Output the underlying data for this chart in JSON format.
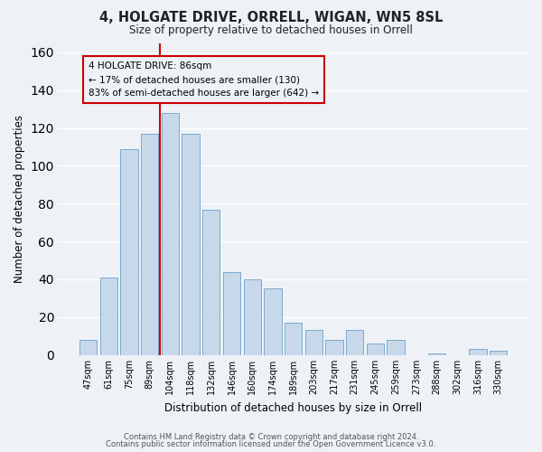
{
  "title": "4, HOLGATE DRIVE, ORRELL, WIGAN, WN5 8SL",
  "subtitle": "Size of property relative to detached houses in Orrell",
  "xlabel": "Distribution of detached houses by size in Orrell",
  "ylabel": "Number of detached properties",
  "bar_color": "#c8d8eb",
  "bar_edge_color": "#7aaacf",
  "categories": [
    "47sqm",
    "61sqm",
    "75sqm",
    "89sqm",
    "104sqm",
    "118sqm",
    "132sqm",
    "146sqm",
    "160sqm",
    "174sqm",
    "189sqm",
    "203sqm",
    "217sqm",
    "231sqm",
    "245sqm",
    "259sqm",
    "273sqm",
    "288sqm",
    "302sqm",
    "316sqm",
    "330sqm"
  ],
  "values": [
    8,
    41,
    109,
    117,
    128,
    117,
    77,
    44,
    40,
    35,
    17,
    13,
    8,
    13,
    6,
    8,
    0,
    1,
    0,
    3,
    2
  ],
  "ylim": [
    0,
    165
  ],
  "yticks": [
    0,
    20,
    40,
    60,
    80,
    100,
    120,
    140,
    160
  ],
  "vline_x": 3.5,
  "vline_color": "#cc0000",
  "annotation_title": "4 HOLGATE DRIVE: 86sqm",
  "annotation_line1": "← 17% of detached houses are smaller (130)",
  "annotation_line2": "83% of semi-detached houses are larger (642) →",
  "footer1": "Contains HM Land Registry data © Crown copyright and database right 2024.",
  "footer2": "Contains public sector information licensed under the Open Government Licence v3.0.",
  "background_color": "#eef2f7",
  "grid_color": "#ffffff"
}
